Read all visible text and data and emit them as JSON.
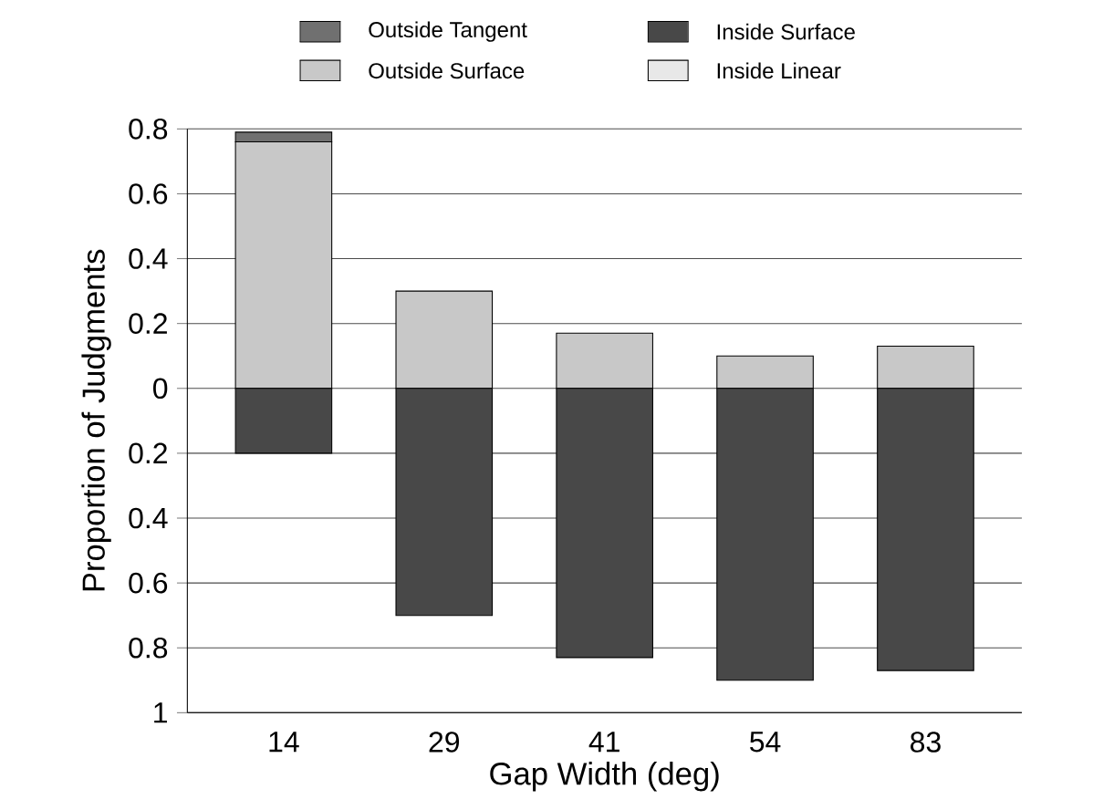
{
  "chart_data": {
    "type": "bar",
    "stacked": true,
    "xlabel": "Gap Width (deg)",
    "ylabel": "Proportion of Judgments",
    "categories": [
      "14",
      "29",
      "41",
      "54",
      "83"
    ],
    "series": [
      {
        "name": "Outside Surface",
        "color": "#c8c8c8",
        "values": [
          0.76,
          0.3,
          0.17,
          0.1,
          0.13
        ]
      },
      {
        "name": "Outside Tangent",
        "color": "#707070",
        "values": [
          0.03,
          null,
          null,
          null,
          null
        ]
      },
      {
        "name": "Inside Surface",
        "color": "#484848",
        "values": [
          -0.2,
          -0.7,
          -0.83,
          -0.9,
          -0.87
        ]
      },
      {
        "name": "Inside Linear",
        "color": "#e8e8e8",
        "values": [
          null,
          null,
          null,
          null,
          null
        ]
      }
    ],
    "ylim": [
      -1,
      0.8
    ],
    "yticks": [
      {
        "value": -1,
        "label": "1"
      },
      {
        "value": -0.8,
        "label": "0.8"
      },
      {
        "value": -0.6,
        "label": "0.6"
      },
      {
        "value": -0.4,
        "label": "0.4"
      },
      {
        "value": -0.2,
        "label": "0.2"
      },
      0,
      0.2,
      0.4,
      0.6,
      0.8
    ],
    "grid": "y",
    "legend": "top"
  }
}
